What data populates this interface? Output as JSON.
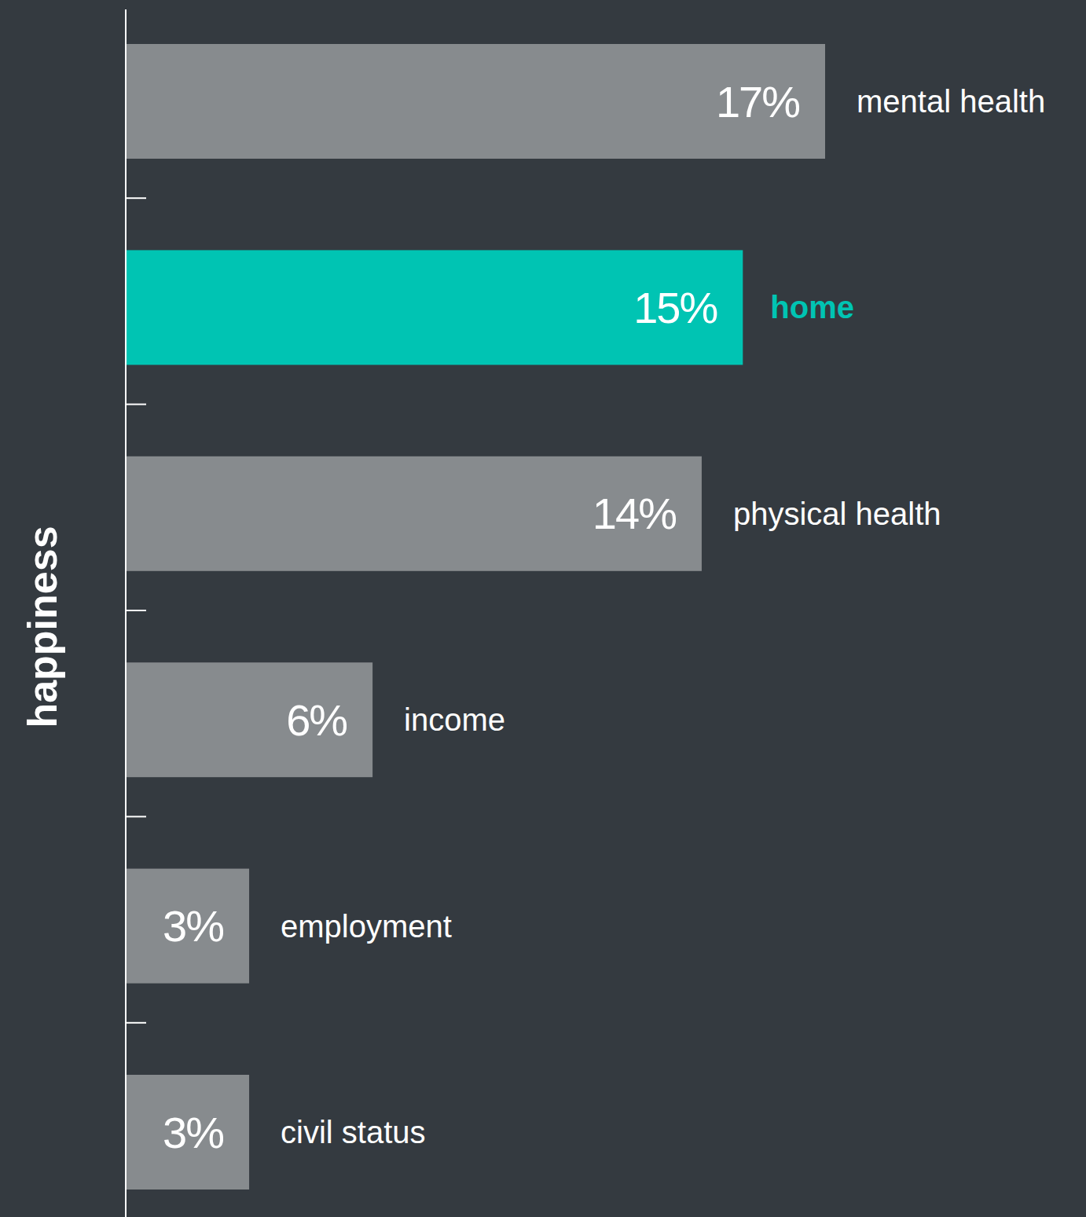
{
  "chart_data": {
    "type": "bar",
    "orientation": "horizontal",
    "y_label": "happiness",
    "categories": [
      "mental health",
      "home",
      "physical health",
      "income",
      "employment",
      "civil status"
    ],
    "values": [
      17,
      15,
      14,
      6,
      3,
      3
    ],
    "value_labels": [
      "17%",
      "15%",
      "14%",
      "6%",
      "3%",
      "3%"
    ],
    "colors": [
      "#878b8e",
      "#00c4b3",
      "#878b8e",
      "#878b8e",
      "#878b8e",
      "#878b8e"
    ],
    "xlim": [
      0,
      17
    ],
    "data_labels": true,
    "tick_labels": false,
    "grid": false
  }
}
